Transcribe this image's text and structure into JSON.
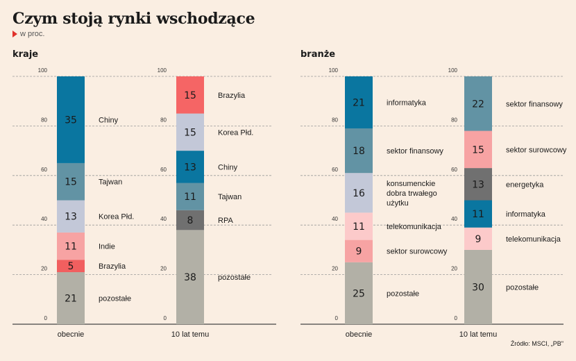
{
  "title": "Czym stoją rynki wschodzące",
  "subtitle": "w proc.",
  "source": "Źródło: MSCI, „PB\"",
  "colors": {
    "background": "#faeee2",
    "accent": "#e0312b"
  },
  "sections": [
    {
      "label": "kraje"
    },
    {
      "label": "branże"
    }
  ],
  "chart_data": [
    {
      "type": "bar",
      "stacked": true,
      "title": "kraje",
      "ylim": [
        0,
        100
      ],
      "yticks": [
        0,
        20,
        40,
        60,
        80,
        100
      ],
      "grid": true,
      "columns": [
        {
          "category": "obecnie",
          "segments": [
            {
              "label": "pozostałe",
              "value": 21,
              "color": "#b2b0a6"
            },
            {
              "label": "Brazylia",
              "value": 5,
              "color": "#f15f5f"
            },
            {
              "label": "Indie",
              "value": 11,
              "color": "#f7a3a3"
            },
            {
              "label": "Korea Płd.",
              "value": 13,
              "color": "#c3c8d8"
            },
            {
              "label": "Tajwan",
              "value": 15,
              "color": "#6293a4"
            },
            {
              "label": "Chiny",
              "value": 35,
              "color": "#0a76a0"
            }
          ]
        },
        {
          "category": "10 lat temu",
          "segments": [
            {
              "label": "pozostałe",
              "value": 38,
              "color": "#b2b0a6"
            },
            {
              "label": "RPA",
              "value": 8,
              "color": "#707070"
            },
            {
              "label": "Tajwan",
              "value": 11,
              "color": "#6293a4"
            },
            {
              "label": "Chiny",
              "value": 13,
              "color": "#0a76a0"
            },
            {
              "label": "Korea Płd.",
              "value": 15,
              "color": "#c3c8d8"
            },
            {
              "label": "Brazylia",
              "value": 15,
              "color": "#f56565"
            }
          ]
        }
      ]
    },
    {
      "type": "bar",
      "stacked": true,
      "title": "branże",
      "ylim": [
        0,
        100
      ],
      "yticks": [
        0,
        20,
        40,
        60,
        80,
        100
      ],
      "grid": true,
      "columns": [
        {
          "category": "obecnie",
          "segments": [
            {
              "label": "pozostałe",
              "value": 25,
              "color": "#b2b0a6"
            },
            {
              "label": "sektor surowcowy",
              "value": 9,
              "color": "#f7a3a3"
            },
            {
              "label": "telekomunikacja",
              "value": 11,
              "color": "#fccaca"
            },
            {
              "label": "konsumenckie dobra trwałego użytku",
              "label_lines": [
                "konsumenckie",
                "dobra trwałego",
                "użytku"
              ],
              "value": 16,
              "color": "#c3c8d8"
            },
            {
              "label": "sektor finansowy",
              "value": 18,
              "color": "#6293a4"
            },
            {
              "label": "informatyka",
              "value": 21,
              "color": "#0a76a0"
            }
          ]
        },
        {
          "category": "10 lat temu",
          "segments": [
            {
              "label": "pozostałe",
              "value": 30,
              "color": "#b2b0a6"
            },
            {
              "label": "telekomunikacja",
              "value": 9,
              "color": "#fccaca"
            },
            {
              "label": "informatyka",
              "value": 11,
              "color": "#0a76a0"
            },
            {
              "label": "energetyka",
              "value": 13,
              "color": "#707070"
            },
            {
              "label": "sektor surowcowy",
              "value": 15,
              "color": "#f7a3a3"
            },
            {
              "label": "sektor finansowy",
              "value": 22,
              "color": "#6293a4"
            }
          ]
        }
      ]
    }
  ]
}
